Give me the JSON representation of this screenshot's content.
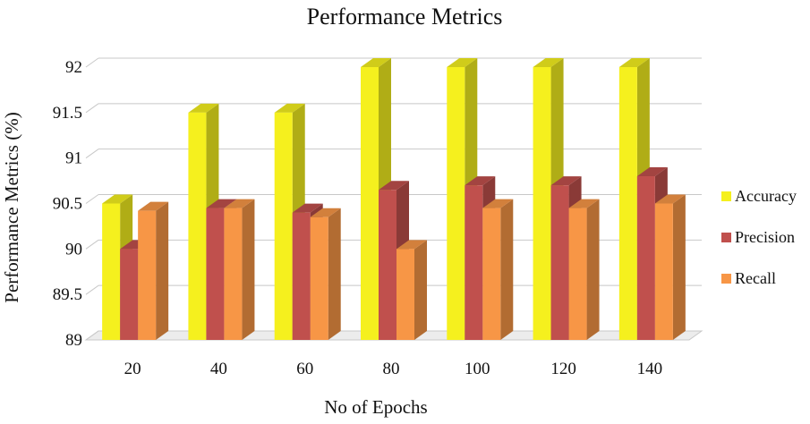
{
  "chart_data": {
    "type": "bar",
    "title": "Performance Metrics",
    "xlabel": "No of Epochs",
    "ylabel": "Performance Metrics (%)",
    "categories": [
      "20",
      "40",
      "60",
      "80",
      "100",
      "120",
      "140"
    ],
    "ylim": [
      89,
      92
    ],
    "yticks": [
      "89",
      "89.5",
      "90",
      "90.5",
      "91",
      "91.5",
      "92"
    ],
    "legend_position": "right",
    "series": [
      {
        "name": "Accuracy",
        "color": "#f5f01e",
        "values": [
          90.5,
          91.5,
          91.5,
          92.0,
          92.0,
          92.0,
          92.0
        ]
      },
      {
        "name": "Precision",
        "color": "#c0504d",
        "values": [
          90.0,
          90.45,
          90.4,
          90.65,
          90.7,
          90.7,
          90.8
        ]
      },
      {
        "name": "Recall",
        "color": "#f79646",
        "values": [
          90.42,
          90.45,
          90.35,
          90.0,
          90.45,
          90.45,
          90.5
        ]
      }
    ]
  }
}
